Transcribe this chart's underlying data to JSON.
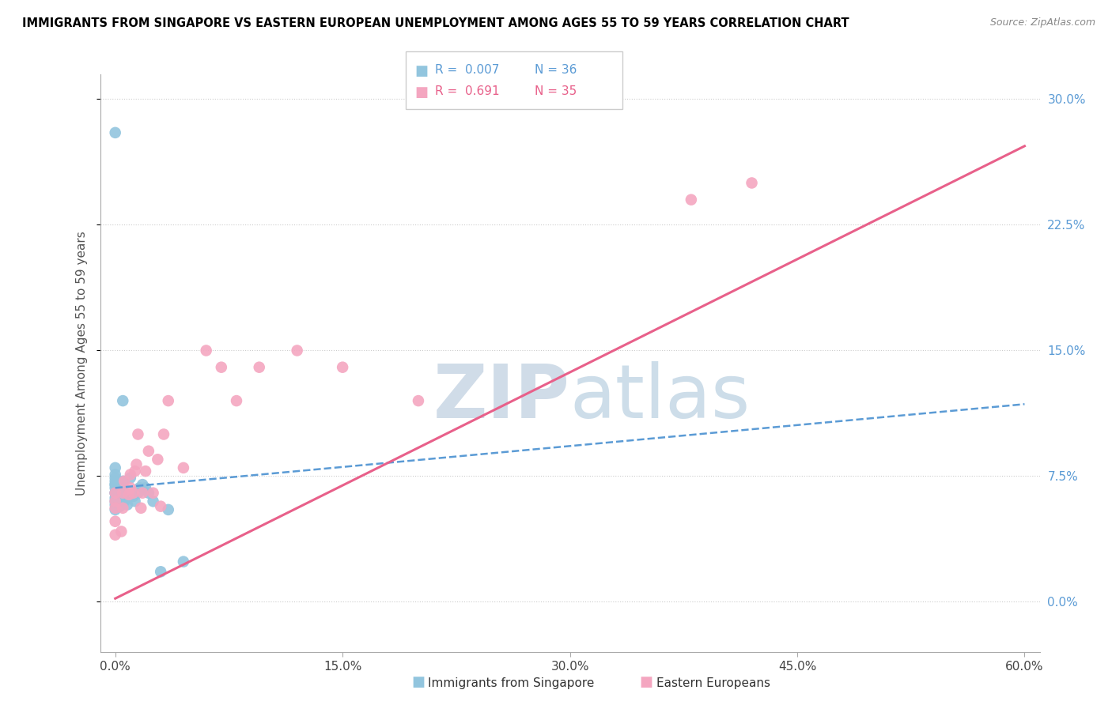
{
  "title": "IMMIGRANTS FROM SINGAPORE VS EASTERN EUROPEAN UNEMPLOYMENT AMONG AGES 55 TO 59 YEARS CORRELATION CHART",
  "source": "Source: ZipAtlas.com",
  "ylabel": "Unemployment Among Ages 55 to 59 years",
  "xlim": [
    -1.0,
    61.0
  ],
  "ylim": [
    -0.03,
    0.315
  ],
  "xticks": [
    0.0,
    15.0,
    30.0,
    45.0,
    60.0
  ],
  "xticklabels": [
    "0.0%",
    "15.0%",
    "30.0%",
    "45.0%",
    "60.0%"
  ],
  "yticks_right": [
    0.0,
    0.075,
    0.15,
    0.225,
    0.3
  ],
  "yticklabels_right": [
    "0.0%",
    "7.5%",
    "15.0%",
    "22.5%",
    "30.0%"
  ],
  "legend_r1": "R =  0.007",
  "legend_n1": "N = 36",
  "legend_r2": "R =  0.691",
  "legend_n2": "N = 35",
  "blue_color": "#92c5de",
  "pink_color": "#f4a6c0",
  "blue_line_color": "#5b9bd5",
  "pink_line_color": "#e8608a",
  "watermark_color": "#d0dce8",
  "blue_x": [
    0.0,
    0.0,
    0.0,
    0.0,
    0.0,
    0.0,
    0.0,
    0.0,
    0.0,
    0.0,
    0.0,
    0.0,
    0.0,
    0.0,
    0.3,
    0.3,
    0.4,
    0.4,
    0.5,
    0.5,
    0.5,
    0.6,
    0.8,
    0.9,
    1.0,
    1.2,
    1.3,
    1.5,
    1.6,
    1.8,
    2.0,
    2.2,
    2.5,
    3.0,
    3.5,
    4.5
  ],
  "blue_y": [
    0.055,
    0.058,
    0.06,
    0.062,
    0.065,
    0.065,
    0.068,
    0.07,
    0.07,
    0.072,
    0.074,
    0.076,
    0.08,
    0.28,
    0.057,
    0.062,
    0.06,
    0.065,
    0.068,
    0.072,
    0.12,
    0.06,
    0.058,
    0.064,
    0.074,
    0.063,
    0.06,
    0.065,
    0.068,
    0.07,
    0.068,
    0.065,
    0.06,
    0.018,
    0.055,
    0.024
  ],
  "pink_x": [
    0.0,
    0.0,
    0.0,
    0.0,
    0.0,
    0.4,
    0.5,
    0.5,
    0.6,
    0.9,
    1.0,
    1.0,
    1.2,
    1.3,
    1.4,
    1.5,
    1.7,
    1.8,
    2.0,
    2.2,
    2.5,
    2.8,
    3.0,
    3.2,
    3.5,
    4.5,
    6.0,
    7.0,
    8.0,
    9.5,
    12.0,
    15.0,
    20.0,
    38.0,
    42.0
  ],
  "pink_y": [
    0.04,
    0.048,
    0.056,
    0.06,
    0.065,
    0.042,
    0.056,
    0.065,
    0.072,
    0.064,
    0.068,
    0.076,
    0.065,
    0.078,
    0.082,
    0.1,
    0.056,
    0.065,
    0.078,
    0.09,
    0.065,
    0.085,
    0.057,
    0.1,
    0.12,
    0.08,
    0.15,
    0.14,
    0.12,
    0.14,
    0.15,
    0.14,
    0.12,
    0.24,
    0.25
  ],
  "blue_trend_x": [
    0.0,
    60.0
  ],
  "blue_trend_y": [
    0.068,
    0.118
  ],
  "pink_trend_x": [
    0.0,
    60.0
  ],
  "pink_trend_y": [
    0.002,
    0.272
  ]
}
